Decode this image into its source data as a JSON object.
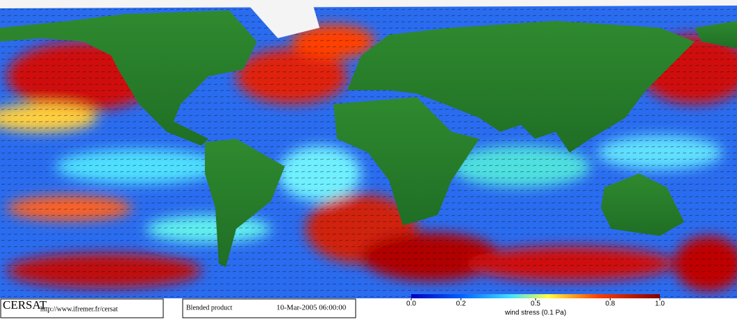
{
  "footer": {
    "logo": "CERSAT",
    "url": "http://www.ifremer.fr/cersat",
    "product": "Blended product",
    "datetime": "10-Mar-2005 06:00:00"
  },
  "colorbar": {
    "label": "wind stress (0.1 Pa)",
    "lim": [
      0,
      1
    ],
    "ticks": [
      {
        "value": 0,
        "label": "0.0"
      },
      0.2,
      0.5,
      0.8,
      {
        "value": 1,
        "label": "1.0"
      }
    ]
  }
}
